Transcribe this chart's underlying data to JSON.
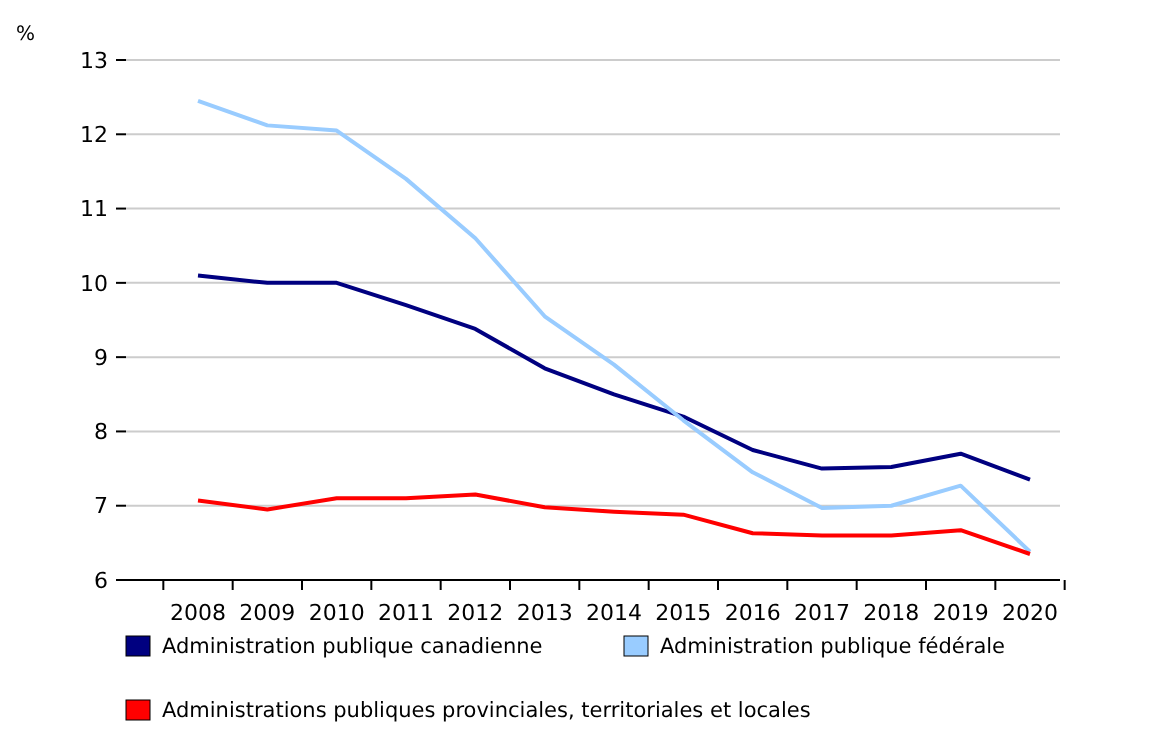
{
  "chart_data": {
    "type": "line",
    "ylabel": "%",
    "categories": [
      "2008",
      "2009",
      "2010",
      "2011",
      "2012",
      "2013",
      "2014",
      "2015",
      "2016",
      "2017",
      "2018",
      "2019",
      "2020"
    ],
    "series": [
      {
        "name": "Administration publique canadienne",
        "color": "#000080",
        "values": [
          10.1,
          10.0,
          10.0,
          9.7,
          9.38,
          8.85,
          8.5,
          8.2,
          7.75,
          7.5,
          7.52,
          7.7,
          7.35
        ]
      },
      {
        "name": "Administration publique fédérale",
        "color": "#99ccff",
        "values": [
          12.45,
          12.12,
          12.05,
          11.4,
          10.6,
          9.55,
          8.9,
          8.15,
          7.45,
          6.97,
          7.0,
          7.27,
          6.38
        ]
      },
      {
        "name": "Administrations publiques provinciales, territoriales et locales",
        "color": "#ff0000",
        "values": [
          7.07,
          6.95,
          7.1,
          7.1,
          7.15,
          6.98,
          6.92,
          6.88,
          6.63,
          6.6,
          6.6,
          6.67,
          6.35
        ]
      }
    ],
    "ylim": [
      6,
      13
    ],
    "yticks": [
      6,
      7,
      8,
      9,
      10,
      11,
      12,
      13
    ],
    "grid": "y",
    "legend": "bottom",
    "marker": "none",
    "line_style": "solid"
  }
}
